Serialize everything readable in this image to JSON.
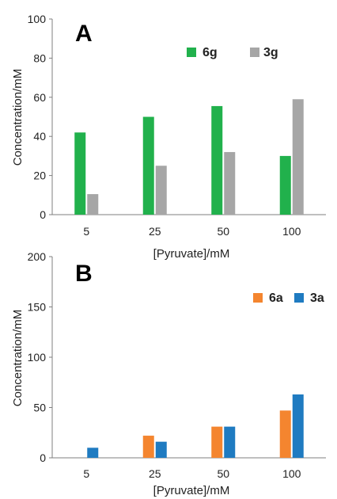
{
  "chart_data": [
    {
      "type": "bar",
      "panel_label": "A",
      "categories": [
        "5",
        "25",
        "50",
        "100"
      ],
      "series": [
        {
          "name": "6g",
          "color": "#21b14c",
          "values": [
            42,
            50,
            55.5,
            30
          ]
        },
        {
          "name": "3g",
          "color": "#a6a6a6",
          "values": [
            10.5,
            25,
            32,
            59
          ]
        }
      ],
      "xlabel": "[Pyruvate]/mM",
      "ylabel": "Concentration/mM",
      "ylim": [
        0,
        100
      ],
      "yticks": [
        0,
        20,
        40,
        60,
        80,
        100
      ],
      "grid": false,
      "legend_position": "top-right"
    },
    {
      "type": "bar",
      "panel_label": "B",
      "categories": [
        "5",
        "25",
        "50",
        "100"
      ],
      "series": [
        {
          "name": "6a",
          "color": "#f4852f",
          "values": [
            0,
            22,
            31,
            47
          ]
        },
        {
          "name": "3a",
          "color": "#1f7bc1",
          "values": [
            10,
            16,
            31,
            63
          ]
        }
      ],
      "xlabel": "[Pyruvate]/mM",
      "ylabel": "Concentration/mM",
      "ylim": [
        0,
        200
      ],
      "yticks": [
        0,
        50,
        100,
        150,
        200
      ],
      "grid": false,
      "legend_position": "top-right"
    }
  ]
}
